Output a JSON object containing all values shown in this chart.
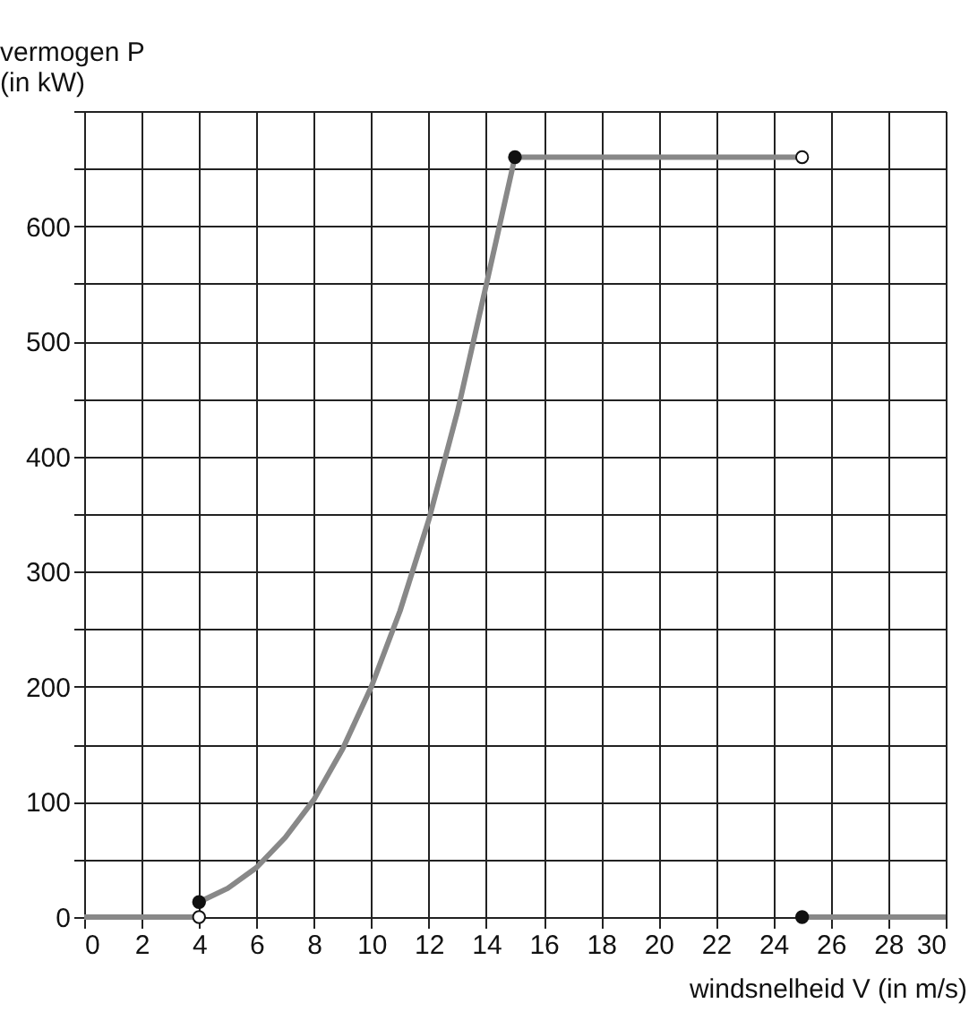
{
  "chart_data": {
    "type": "line",
    "xlabel": "windsnelheid V (in m/s)",
    "ylabel": "vermogen P\n(in kW)",
    "xlim": [
      0,
      30
    ],
    "xticks": [
      0,
      2,
      4,
      6,
      8,
      10,
      12,
      14,
      16,
      18,
      20,
      22,
      24,
      26,
      28,
      30
    ],
    "ylim": [
      0,
      700
    ],
    "yticks": [
      0,
      {
        "value": 50,
        "label": null
      },
      100,
      {
        "value": 150,
        "label": null
      },
      200,
      {
        "value": 250,
        "label": null
      },
      300,
      {
        "value": 350,
        "label": null
      },
      400,
      {
        "value": 450,
        "label": null
      },
      500,
      {
        "value": 550,
        "label": null
      },
      600,
      {
        "value": 650,
        "label": null
      },
      {
        "value": 700,
        "label": null
      }
    ],
    "grid": true,
    "series": [
      {
        "color": "#888888",
        "marker": "none",
        "x": [
          0,
          4
        ],
        "values": [
          0,
          0
        ]
      },
      {
        "color": "#888888",
        "marker": "none",
        "x": [
          4,
          5,
          6,
          7,
          8,
          9,
          10,
          11,
          12,
          13,
          14,
          15
        ],
        "values": [
          13,
          25,
          43,
          69,
          102,
          146,
          200,
          266,
          345,
          439,
          549,
          660
        ]
      },
      {
        "color": "#888888",
        "marker": "none",
        "x": [
          15,
          25
        ],
        "values": [
          660,
          660
        ]
      },
      {
        "color": "#888888",
        "marker": "none",
        "x": [
          25,
          30
        ],
        "values": [
          0,
          0
        ]
      },
      {
        "type": "scatter",
        "color": "#111111",
        "marker": "circle",
        "x": [
          4,
          15,
          25
        ],
        "values": [
          13,
          660,
          0
        ]
      },
      {
        "type": "scatter",
        "color": "#ffffff",
        "marker": "circle",
        "x": [
          4,
          25
        ],
        "values": [
          0,
          660
        ]
      }
    ]
  }
}
